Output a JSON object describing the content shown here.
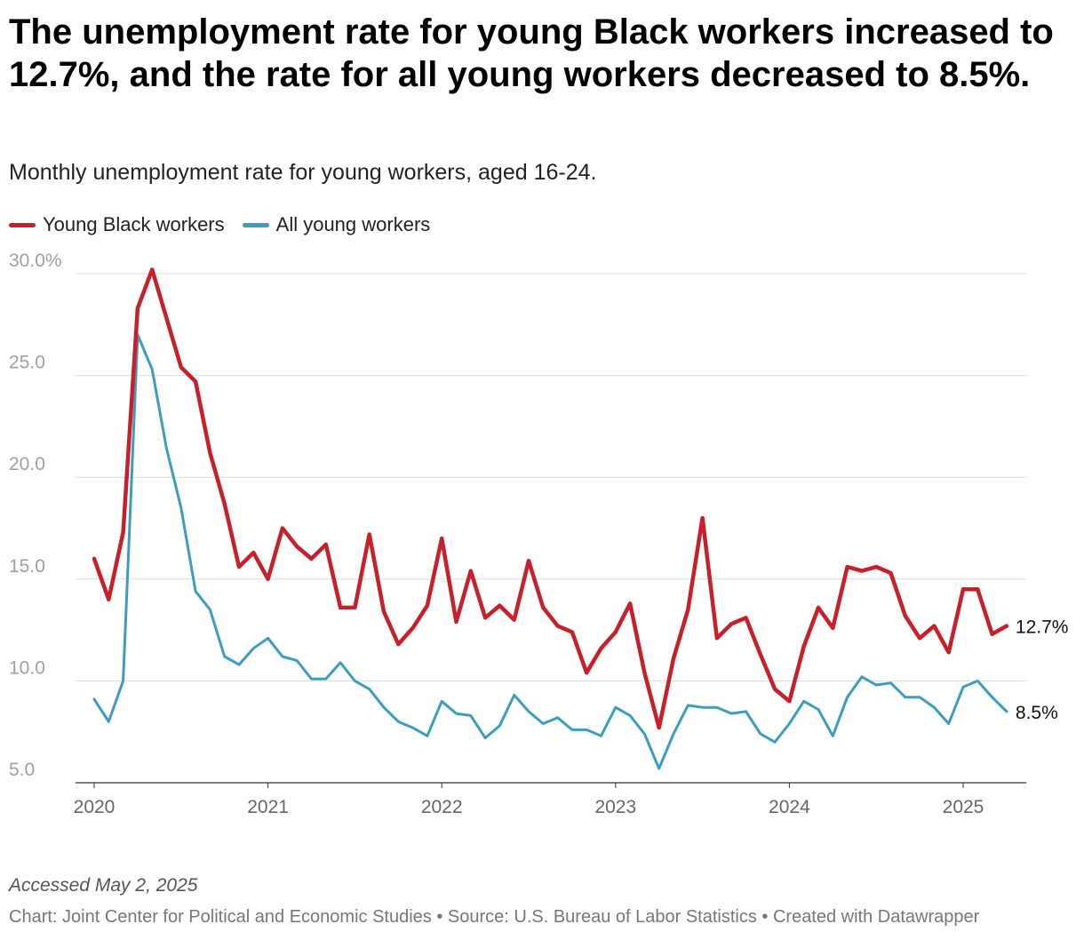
{
  "chart_data": {
    "type": "line",
    "title": "The unemployment rate for young Black workers increased to 12.7%, and the rate for all young workers decreased to 8.5%.",
    "subtitle": "Monthly unemployment rate for young workers, aged 16-24.",
    "xlabel": "",
    "ylabel": "",
    "x_start": "2020-01",
    "x_end": "2025-04",
    "ylim": [
      5,
      30
    ],
    "yticks": [
      {
        "value": 30,
        "label": "30.0%"
      },
      {
        "value": 25,
        "label": "25.0"
      },
      {
        "value": 20,
        "label": "20.0"
      },
      {
        "value": 15,
        "label": "15.0"
      },
      {
        "value": 10,
        "label": "10.0"
      },
      {
        "value": 5,
        "label": "5.0"
      }
    ],
    "xticks": [
      {
        "index": 0,
        "label": "2020"
      },
      {
        "index": 12,
        "label": "2021"
      },
      {
        "index": 24,
        "label": "2022"
      },
      {
        "index": 36,
        "label": "2023"
      },
      {
        "index": 48,
        "label": "2024"
      },
      {
        "index": 60,
        "label": "2025"
      }
    ],
    "grid": true,
    "series": [
      {
        "name": "Young Black workers",
        "color": "#c8202a",
        "end_label": "12.7%",
        "values": [
          16.0,
          14.0,
          17.3,
          28.3,
          30.2,
          27.8,
          25.4,
          24.7,
          21.2,
          18.7,
          15.6,
          16.3,
          15.0,
          17.5,
          16.6,
          16.0,
          16.7,
          13.6,
          13.6,
          17.2,
          13.4,
          11.8,
          12.6,
          13.7,
          17.0,
          12.9,
          15.4,
          13.1,
          13.7,
          13.0,
          15.9,
          13.6,
          12.7,
          12.4,
          10.4,
          11.6,
          12.4,
          13.8,
          10.4,
          7.7,
          11.1,
          13.5,
          18.0,
          12.1,
          12.8,
          13.1,
          11.3,
          9.6,
          9.0,
          11.7,
          13.6,
          12.6,
          15.6,
          15.4,
          15.6,
          15.3,
          13.2,
          12.1,
          12.7,
          11.4,
          14.5,
          14.5,
          12.3,
          12.7
        ]
      },
      {
        "name": "All young workers",
        "color": "#3d9dbf",
        "end_label": "8.5%",
        "values": [
          9.1,
          8.0,
          10.0,
          27.0,
          25.3,
          21.4,
          18.5,
          14.4,
          13.5,
          11.2,
          10.8,
          11.6,
          12.1,
          11.2,
          11.0,
          10.1,
          10.1,
          10.9,
          10.0,
          9.6,
          8.7,
          8.0,
          7.7,
          7.3,
          9.0,
          8.4,
          8.3,
          7.2,
          7.8,
          9.3,
          8.5,
          7.9,
          8.2,
          7.6,
          7.6,
          7.3,
          8.7,
          8.3,
          7.4,
          5.7,
          7.4,
          8.8,
          8.7,
          8.7,
          8.4,
          8.5,
          7.4,
          7.0,
          7.9,
          9.0,
          8.6,
          7.3,
          9.2,
          10.2,
          9.8,
          9.9,
          9.2,
          9.2,
          8.7,
          7.9,
          9.7,
          10.0,
          9.2,
          8.5
        ]
      }
    ]
  },
  "footer": {
    "accessed": "Accessed May 2, 2025",
    "credit": "Chart: Joint Center for Political and Economic Studies • Source: U.S. Bureau of Labor Statistics • Created with Datawrapper"
  }
}
